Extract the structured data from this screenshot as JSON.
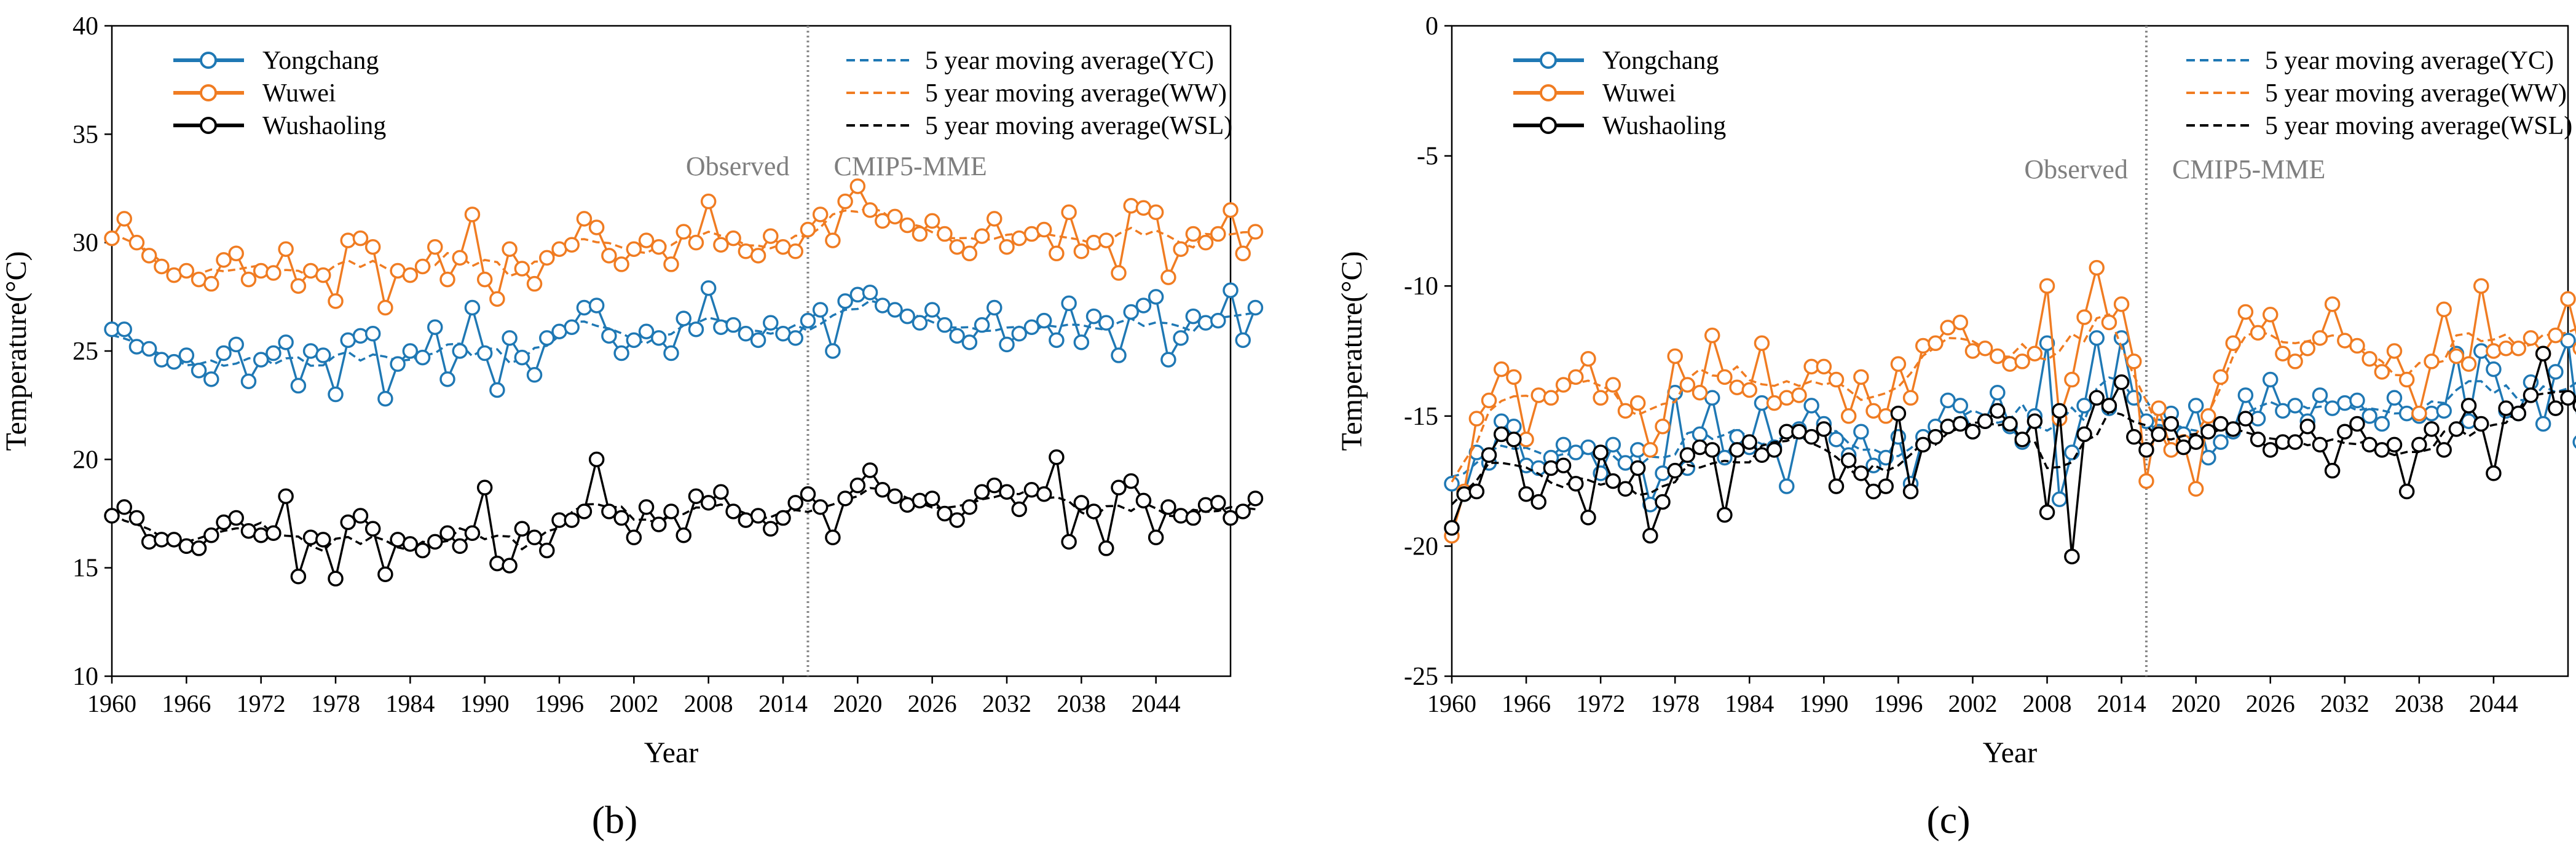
{
  "colors": {
    "yongchang": "#1f78b4",
    "wuwei": "#f07c22",
    "wushaoling": "#000000",
    "divider": "#888888",
    "annot": "#7f7f7f"
  },
  "chart_data": [
    {
      "panel_label": "(b)",
      "type": "line",
      "xlabel": "Year",
      "ylabel": "Temperature(°C)",
      "ylim": [
        10,
        40
      ],
      "yticks": [
        10,
        15,
        20,
        25,
        30,
        35,
        40
      ],
      "xlim": [
        1960,
        2050
      ],
      "xticks": [
        "1960",
        "1966",
        "1972",
        "1978",
        "1984",
        "1990",
        "1996",
        "2002",
        "2008",
        "2014",
        "2020",
        "2026",
        "2032",
        "2038",
        "2044"
      ],
      "xtick_values": [
        1960,
        1966,
        1972,
        1978,
        1984,
        1990,
        1996,
        2002,
        2008,
        2014,
        2020,
        2026,
        2032,
        2038,
        2044
      ],
      "divider_year": 2016,
      "annotations": {
        "observed": "Observed",
        "projected": "CMIP5-MME"
      },
      "legend": [
        {
          "label": "Yongchang",
          "key": "yongchang",
          "style": "marker"
        },
        {
          "label": "Wuwei",
          "key": "wuwei",
          "style": "marker"
        },
        {
          "label": "Wushaoling",
          "key": "wushaoling",
          "style": "marker"
        },
        {
          "label": "5 year moving average(YC)",
          "key": "yongchang",
          "style": "dashed"
        },
        {
          "label": "5 year moving average(WW)",
          "key": "wuwei",
          "style": "dashed"
        },
        {
          "label": "5 year moving average(WSL)",
          "key": "wushaoling",
          "style": "dashed"
        }
      ],
      "x_start": 1960,
      "series": [
        {
          "name": "Yongchang",
          "key": "yongchang",
          "values": [
            26.0,
            26.0,
            25.2,
            25.1,
            24.6,
            24.5,
            24.8,
            24.1,
            23.7,
            24.9,
            25.3,
            23.6,
            24.6,
            24.9,
            25.4,
            23.4,
            25.0,
            24.8,
            23.0,
            25.5,
            25.7,
            25.8,
            22.8,
            24.4,
            25.0,
            24.7,
            26.1,
            23.7,
            25.0,
            27.0,
            24.9,
            23.2,
            25.6,
            24.7,
            23.9,
            25.6,
            25.9,
            26.1,
            27.0,
            27.1,
            25.7,
            24.9,
            25.5,
            25.9,
            25.6,
            24.9,
            26.5,
            26.0,
            27.9,
            26.1,
            26.2,
            25.8,
            25.5,
            26.3,
            25.8,
            25.6,
            26.4,
            26.9,
            25.0,
            27.3,
            27.6,
            27.7,
            27.1,
            26.9,
            26.6,
            26.3,
            26.9,
            26.2,
            25.7,
            25.4,
            26.2,
            27.0,
            25.3,
            25.8,
            26.1,
            26.4,
            25.5,
            27.2,
            25.4,
            26.6,
            26.3,
            24.8,
            26.8,
            27.1,
            27.5,
            24.6,
            25.6,
            26.6,
            26.3,
            26.4,
            27.8,
            25.5,
            27.0
          ]
        },
        {
          "name": "Wuwei",
          "key": "wuwei",
          "values": [
            30.2,
            31.1,
            30.0,
            29.4,
            28.9,
            28.5,
            28.7,
            28.3,
            28.1,
            29.2,
            29.5,
            28.3,
            28.7,
            28.6,
            29.7,
            28.0,
            28.7,
            28.5,
            27.3,
            30.1,
            30.2,
            29.8,
            27.0,
            28.7,
            28.5,
            28.9,
            29.8,
            28.3,
            29.3,
            31.3,
            28.3,
            27.4,
            29.7,
            28.8,
            28.1,
            29.3,
            29.7,
            29.9,
            31.1,
            30.7,
            29.4,
            29.0,
            29.7,
            30.1,
            29.8,
            29.0,
            30.5,
            30.0,
            31.9,
            29.9,
            30.2,
            29.6,
            29.4,
            30.3,
            29.8,
            29.6,
            30.6,
            31.3,
            30.1,
            31.9,
            32.6,
            31.5,
            31.0,
            31.2,
            30.8,
            30.4,
            31.0,
            30.4,
            29.8,
            29.5,
            30.3,
            31.1,
            29.8,
            30.2,
            30.4,
            30.6,
            29.5,
            31.4,
            29.6,
            30.0,
            30.1,
            28.6,
            31.7,
            31.6,
            31.4,
            28.4,
            29.7,
            30.4,
            30.0,
            30.4,
            31.5,
            29.5,
            30.5
          ]
        },
        {
          "name": "Wushaoling",
          "key": "wushaoling",
          "values": [
            17.4,
            17.8,
            17.3,
            16.2,
            16.3,
            16.3,
            16.0,
            15.9,
            16.5,
            17.1,
            17.3,
            16.7,
            16.5,
            16.6,
            18.3,
            14.6,
            16.4,
            16.3,
            14.5,
            17.1,
            17.4,
            16.8,
            14.7,
            16.3,
            16.1,
            15.8,
            16.2,
            16.6,
            16.0,
            16.6,
            18.7,
            15.2,
            15.1,
            16.8,
            16.4,
            15.8,
            17.2,
            17.2,
            17.6,
            20.0,
            17.6,
            17.3,
            16.4,
            17.8,
            17.0,
            17.6,
            16.5,
            18.3,
            18.0,
            18.5,
            17.6,
            17.2,
            17.4,
            16.8,
            17.3,
            18.0,
            18.4,
            17.8,
            16.4,
            18.2,
            18.8,
            19.5,
            18.6,
            18.3,
            17.9,
            18.1,
            18.2,
            17.5,
            17.2,
            17.8,
            18.5,
            18.8,
            18.5,
            17.7,
            18.6,
            18.4,
            20.1,
            16.2,
            18.0,
            17.6,
            15.9,
            18.7,
            19.0,
            18.1,
            16.4,
            17.8,
            17.4,
            17.3,
            17.9,
            18.0,
            17.3,
            17.6,
            18.2
          ]
        }
      ]
    },
    {
      "panel_label": "(c)",
      "type": "line",
      "xlabel": "Year",
      "ylabel": "Temperature(°C)",
      "ylim": [
        -25,
        0
      ],
      "yticks": [
        -25,
        -20,
        -15,
        -10,
        -5,
        0
      ],
      "xlim": [
        1960,
        2050
      ],
      "xticks": [
        "1960",
        "1966",
        "1972",
        "1978",
        "1984",
        "1990",
        "1996",
        "2002",
        "2008",
        "2014",
        "2020",
        "2026",
        "2032",
        "2038",
        "2044"
      ],
      "xtick_values": [
        1960,
        1966,
        1972,
        1978,
        1984,
        1990,
        1996,
        2002,
        2008,
        2014,
        2020,
        2026,
        2032,
        2038,
        2044
      ],
      "divider_year": 2016,
      "annotations": {
        "observed": "Observed",
        "projected": "CMIP5-MME"
      },
      "legend": [
        {
          "label": "Yongchang",
          "key": "yongchang",
          "style": "marker"
        },
        {
          "label": "Wuwei",
          "key": "wuwei",
          "style": "marker"
        },
        {
          "label": "Wushaoling",
          "key": "wushaoling",
          "style": "marker"
        },
        {
          "label": "5 year moving average(YC)",
          "key": "yongchang",
          "style": "dashed"
        },
        {
          "label": "5 year moving average(WW)",
          "key": "wuwei",
          "style": "dashed"
        },
        {
          "label": "5 year moving average(WSL)",
          "key": "wushaoling",
          "style": "dashed"
        }
      ],
      "x_start": 1960,
      "series": [
        {
          "name": "Yongchang",
          "key": "yongchang",
          "values": [
            -17.6,
            -18.0,
            -16.4,
            -16.8,
            -15.2,
            -15.4,
            -16.9,
            -17.0,
            -16.6,
            -16.1,
            -16.4,
            -16.2,
            -17.2,
            -16.1,
            -16.8,
            -16.3,
            -18.4,
            -17.2,
            -14.1,
            -17.0,
            -15.7,
            -14.3,
            -16.6,
            -15.8,
            -16.2,
            -14.5,
            -16.2,
            -17.7,
            -15.5,
            -14.6,
            -15.3,
            -15.9,
            -16.5,
            -15.6,
            -16.9,
            -16.6,
            -15.8,
            -17.6,
            -15.8,
            -15.4,
            -14.4,
            -14.6,
            -15.6,
            -15.2,
            -14.1,
            -15.4,
            -16.0,
            -15.0,
            -12.2,
            -18.2,
            -16.4,
            -14.6,
            -12.0,
            -14.7,
            -12.0,
            -14.3,
            -15.2,
            -15.6,
            -14.9,
            -15.7,
            -14.6,
            -16.6,
            -16.0,
            -15.6,
            -14.2,
            -15.1,
            -13.6,
            -14.8,
            -14.6,
            -15.2,
            -14.2,
            -14.7,
            -14.5,
            -14.4,
            -15.0,
            -15.3,
            -14.3,
            -14.9,
            -15.0,
            -14.9,
            -14.8,
            -12.6,
            -15.2,
            -12.5,
            -13.2,
            -14.8,
            -14.9,
            -13.7,
            -15.3,
            -13.3,
            -12.1,
            -16.0,
            -13.0
          ]
        },
        {
          "name": "Wuwei",
          "key": "wuwei",
          "values": [
            -19.6,
            -17.9,
            -15.1,
            -14.4,
            -13.2,
            -13.5,
            -15.9,
            -14.2,
            -14.3,
            -13.8,
            -13.5,
            -12.8,
            -14.3,
            -13.8,
            -14.8,
            -14.5,
            -16.3,
            -15.4,
            -12.7,
            -13.8,
            -14.1,
            -11.9,
            -13.5,
            -13.9,
            -14.0,
            -12.2,
            -14.5,
            -14.3,
            -14.2,
            -13.1,
            -13.1,
            -13.6,
            -15.0,
            -13.5,
            -14.8,
            -15.0,
            -13.0,
            -14.3,
            -12.3,
            -12.2,
            -11.6,
            -11.4,
            -12.5,
            -12.4,
            -12.7,
            -13.0,
            -12.9,
            -12.6,
            -10.0,
            -15.1,
            -13.6,
            -11.2,
            -9.3,
            -11.4,
            -10.7,
            -12.9,
            -17.5,
            -14.7,
            -16.3,
            -16.0,
            -17.8,
            -15.0,
            -13.5,
            -12.2,
            -11.0,
            -11.8,
            -11.1,
            -12.6,
            -12.9,
            -12.4,
            -12.0,
            -10.7,
            -12.1,
            -12.3,
            -12.8,
            -13.3,
            -12.5,
            -13.6,
            -14.9,
            -12.9,
            -10.9,
            -12.7,
            -13.0,
            -10.0,
            -12.5,
            -12.4,
            -12.4,
            -12.0,
            -12.6,
            -11.9,
            -10.5,
            -12.4,
            -11.5
          ]
        },
        {
          "name": "Wushaoling",
          "key": "wushaoling",
          "values": [
            -19.3,
            -18.0,
            -17.9,
            -16.5,
            -15.7,
            -15.9,
            -18.0,
            -18.3,
            -17.0,
            -16.9,
            -17.6,
            -18.9,
            -16.4,
            -17.5,
            -17.8,
            -17.0,
            -19.6,
            -18.3,
            -17.1,
            -16.5,
            -16.2,
            -16.3,
            -18.8,
            -16.3,
            -16.0,
            -16.5,
            -16.3,
            -15.6,
            -15.6,
            -15.8,
            -15.5,
            -17.7,
            -16.7,
            -17.2,
            -17.9,
            -17.7,
            -14.9,
            -17.9,
            -16.1,
            -15.8,
            -15.4,
            -15.3,
            -15.6,
            -15.2,
            -14.8,
            -15.3,
            -15.9,
            -15.2,
            -18.7,
            -14.8,
            -20.4,
            -15.7,
            -14.3,
            -14.6,
            -13.7,
            -15.8,
            -16.3,
            -15.7,
            -15.3,
            -16.2,
            -16.0,
            -15.6,
            -15.3,
            -15.5,
            -15.1,
            -15.9,
            -16.3,
            -16.0,
            -16.0,
            -15.4,
            -16.1,
            -17.1,
            -15.6,
            -15.3,
            -16.1,
            -16.3,
            -16.1,
            -17.9,
            -16.1,
            -15.5,
            -16.3,
            -15.5,
            -14.6,
            -15.3,
            -17.2,
            -14.7,
            -14.9,
            -14.2,
            -12.6,
            -14.7,
            -14.3,
            -14.6,
            -14.0
          ]
        }
      ]
    }
  ]
}
